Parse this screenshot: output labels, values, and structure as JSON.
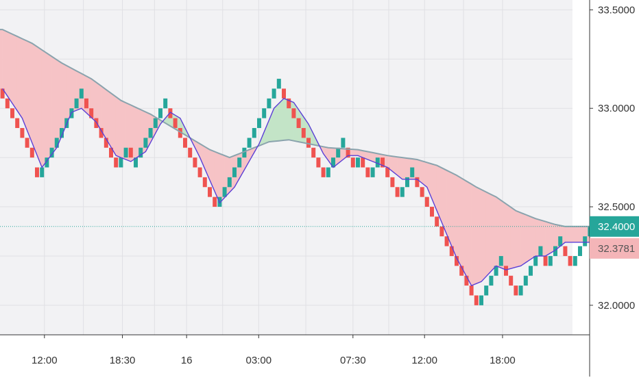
{
  "chart_data": {
    "type": "renko",
    "instrument_hint": "",
    "y_axis": {
      "ticks": [
        "33.5000",
        "33.0000",
        "32.5000",
        "32.0000"
      ],
      "tick_values": [
        33.5,
        33.0,
        32.5,
        32.0
      ],
      "ylim": [
        31.85,
        33.55
      ],
      "position": "right"
    },
    "x_axis": {
      "ticks": [
        "12:00",
        "18:30",
        "16",
        "03:00",
        "07:30",
        "12:00",
        "18:00"
      ],
      "tick_brick_index": [
        8.5,
        24.3,
        37.3,
        51.9,
        71.0,
        85.5,
        101.3
      ]
    },
    "box_size": 0.05,
    "bricks": [
      {
        "dir": "down",
        "close": 33.05
      },
      {
        "dir": "down",
        "close": 33.0
      },
      {
        "dir": "down",
        "close": 32.95
      },
      {
        "dir": "down",
        "close": 32.9
      },
      {
        "dir": "down",
        "close": 32.85
      },
      {
        "dir": "down",
        "close": 32.8
      },
      {
        "dir": "down",
        "close": 32.75
      },
      {
        "dir": "down",
        "close": 32.65
      },
      {
        "dir": "up",
        "close": 32.7
      },
      {
        "dir": "up",
        "close": 32.75
      },
      {
        "dir": "up",
        "close": 32.8
      },
      {
        "dir": "up",
        "close": 32.85
      },
      {
        "dir": "up",
        "close": 32.9
      },
      {
        "dir": "up",
        "close": 32.95
      },
      {
        "dir": "up",
        "close": 33.0
      },
      {
        "dir": "up",
        "close": 33.05
      },
      {
        "dir": "up",
        "close": 33.1
      },
      {
        "dir": "down",
        "close": 33.0
      },
      {
        "dir": "down",
        "close": 32.95
      },
      {
        "dir": "down",
        "close": 32.9
      },
      {
        "dir": "down",
        "close": 32.85
      },
      {
        "dir": "down",
        "close": 32.8
      },
      {
        "dir": "down",
        "close": 32.75
      },
      {
        "dir": "down",
        "close": 32.7
      },
      {
        "dir": "up",
        "close": 32.75
      },
      {
        "dir": "up",
        "close": 32.8
      },
      {
        "dir": "down",
        "close": 32.75
      },
      {
        "dir": "up",
        "close": 32.75
      },
      {
        "dir": "up",
        "close": 32.8
      },
      {
        "dir": "up",
        "close": 32.85
      },
      {
        "dir": "up",
        "close": 32.9
      },
      {
        "dir": "up",
        "close": 32.95
      },
      {
        "dir": "up",
        "close": 33.0
      },
      {
        "dir": "up",
        "close": 33.05
      },
      {
        "dir": "down",
        "close": 32.95
      },
      {
        "dir": "down",
        "close": 32.9
      },
      {
        "dir": "down",
        "close": 32.85
      },
      {
        "dir": "down",
        "close": 32.8
      },
      {
        "dir": "down",
        "close": 32.75
      },
      {
        "dir": "down",
        "close": 32.7
      },
      {
        "dir": "down",
        "close": 32.65
      },
      {
        "dir": "down",
        "close": 32.6
      },
      {
        "dir": "down",
        "close": 32.55
      },
      {
        "dir": "down",
        "close": 32.5
      },
      {
        "dir": "up",
        "close": 32.55
      },
      {
        "dir": "up",
        "close": 32.6
      },
      {
        "dir": "up",
        "close": 32.65
      },
      {
        "dir": "up",
        "close": 32.7
      },
      {
        "dir": "up",
        "close": 32.75
      },
      {
        "dir": "up",
        "close": 32.8
      },
      {
        "dir": "up",
        "close": 32.85
      },
      {
        "dir": "up",
        "close": 32.9
      },
      {
        "dir": "up",
        "close": 32.95
      },
      {
        "dir": "up",
        "close": 33.0
      },
      {
        "dir": "up",
        "close": 33.05
      },
      {
        "dir": "up",
        "close": 33.1
      },
      {
        "dir": "up",
        "close": 33.15
      },
      {
        "dir": "down",
        "close": 33.05
      },
      {
        "dir": "down",
        "close": 33.0
      },
      {
        "dir": "down",
        "close": 32.95
      },
      {
        "dir": "down",
        "close": 32.9
      },
      {
        "dir": "down",
        "close": 32.85
      },
      {
        "dir": "down",
        "close": 32.8
      },
      {
        "dir": "down",
        "close": 32.75
      },
      {
        "dir": "down",
        "close": 32.7
      },
      {
        "dir": "down",
        "close": 32.65
      },
      {
        "dir": "up",
        "close": 32.7
      },
      {
        "dir": "up",
        "close": 32.75
      },
      {
        "dir": "up",
        "close": 32.8
      },
      {
        "dir": "up",
        "close": 32.85
      },
      {
        "dir": "down",
        "close": 32.75
      },
      {
        "dir": "down",
        "close": 32.7
      },
      {
        "dir": "up",
        "close": 32.75
      },
      {
        "dir": "down",
        "close": 32.7
      },
      {
        "dir": "down",
        "close": 32.65
      },
      {
        "dir": "up",
        "close": 32.7
      },
      {
        "dir": "up",
        "close": 32.75
      },
      {
        "dir": "down",
        "close": 32.7
      },
      {
        "dir": "down",
        "close": 32.65
      },
      {
        "dir": "down",
        "close": 32.6
      },
      {
        "dir": "down",
        "close": 32.55
      },
      {
        "dir": "up",
        "close": 32.6
      },
      {
        "dir": "up",
        "close": 32.65
      },
      {
        "dir": "up",
        "close": 32.7
      },
      {
        "dir": "down",
        "close": 32.6
      },
      {
        "dir": "down",
        "close": 32.55
      },
      {
        "dir": "down",
        "close": 32.5
      },
      {
        "dir": "down",
        "close": 32.45
      },
      {
        "dir": "down",
        "close": 32.4
      },
      {
        "dir": "down",
        "close": 32.35
      },
      {
        "dir": "down",
        "close": 32.3
      },
      {
        "dir": "down",
        "close": 32.25
      },
      {
        "dir": "down",
        "close": 32.2
      },
      {
        "dir": "down",
        "close": 32.15
      },
      {
        "dir": "down",
        "close": 32.1
      },
      {
        "dir": "down",
        "close": 32.05
      },
      {
        "dir": "down",
        "close": 32.0
      },
      {
        "dir": "up",
        "close": 32.05
      },
      {
        "dir": "up",
        "close": 32.1
      },
      {
        "dir": "up",
        "close": 32.15
      },
      {
        "dir": "up",
        "close": 32.2
      },
      {
        "dir": "up",
        "close": 32.25
      },
      {
        "dir": "down",
        "close": 32.15
      },
      {
        "dir": "down",
        "close": 32.1
      },
      {
        "dir": "down",
        "close": 32.05
      },
      {
        "dir": "up",
        "close": 32.1
      },
      {
        "dir": "up",
        "close": 32.15
      },
      {
        "dir": "up",
        "close": 32.2
      },
      {
        "dir": "up",
        "close": 32.25
      },
      {
        "dir": "up",
        "close": 32.3
      },
      {
        "dir": "down",
        "close": 32.2
      },
      {
        "dir": "up",
        "close": 32.25
      },
      {
        "dir": "up",
        "close": 32.3
      },
      {
        "dir": "up",
        "close": 32.35
      },
      {
        "dir": "down",
        "close": 32.25
      },
      {
        "dir": "down",
        "close": 32.2
      },
      {
        "dir": "up",
        "close": 32.25
      },
      {
        "dir": "up",
        "close": 32.3
      },
      {
        "dir": "up",
        "close": 32.35
      },
      {
        "dir": "up",
        "close": 32.4
      }
    ],
    "fast_ma": {
      "color": "#5b3fd6",
      "points": [
        [
          0,
          33.1
        ],
        [
          4,
          32.95
        ],
        [
          8,
          32.7
        ],
        [
          11,
          32.8
        ],
        [
          14,
          32.98
        ],
        [
          16,
          33.0
        ],
        [
          19,
          32.93
        ],
        [
          23,
          32.76
        ],
        [
          26,
          32.73
        ],
        [
          29,
          32.78
        ],
        [
          32,
          32.92
        ],
        [
          34,
          32.98
        ],
        [
          36,
          32.95
        ],
        [
          40,
          32.75
        ],
        [
          44,
          32.52
        ],
        [
          47,
          32.6
        ],
        [
          52,
          32.82
        ],
        [
          55,
          33.0
        ],
        [
          57,
          33.05
        ],
        [
          59,
          33.03
        ],
        [
          62,
          32.92
        ],
        [
          65,
          32.77
        ],
        [
          67,
          32.7
        ],
        [
          70,
          32.76
        ],
        [
          72,
          32.76
        ],
        [
          75,
          32.73
        ],
        [
          78,
          32.7
        ],
        [
          81,
          32.64
        ],
        [
          84,
          32.64
        ],
        [
          86,
          32.6
        ],
        [
          89,
          32.42
        ],
        [
          92,
          32.24
        ],
        [
          95,
          32.1
        ],
        [
          97,
          32.12
        ],
        [
          100,
          32.2
        ],
        [
          102,
          32.18
        ],
        [
          105,
          32.2
        ],
        [
          108,
          32.25
        ],
        [
          110,
          32.25
        ],
        [
          112,
          32.28
        ],
        [
          114,
          32.32
        ]
      ]
    },
    "slow_ma": {
      "color": "#8aa3ad",
      "points": [
        [
          0,
          33.4
        ],
        [
          6,
          33.33
        ],
        [
          12,
          33.23
        ],
        [
          18,
          33.15
        ],
        [
          24,
          33.04
        ],
        [
          30,
          32.97
        ],
        [
          36,
          32.88
        ],
        [
          42,
          32.79
        ],
        [
          46,
          32.75
        ],
        [
          50,
          32.79
        ],
        [
          54,
          32.83
        ],
        [
          58,
          32.84
        ],
        [
          62,
          32.82
        ],
        [
          66,
          32.8
        ],
        [
          72,
          32.79
        ],
        [
          78,
          32.76
        ],
        [
          84,
          32.74
        ],
        [
          88,
          32.71
        ],
        [
          92,
          32.66
        ],
        [
          96,
          32.6
        ],
        [
          100,
          32.55
        ],
        [
          104,
          32.48
        ],
        [
          108,
          32.44
        ],
        [
          112,
          32.41
        ],
        [
          114,
          32.4
        ]
      ]
    },
    "cloud": {
      "bull_color": "#c3e4c7",
      "bear_color": "#f6c3c6"
    },
    "colors": {
      "up": "#26a69a",
      "down": "#ef5350",
      "background": "#f2f2f4",
      "grid": "#e0e0e4"
    },
    "price_labels": [
      {
        "text": "32.4000",
        "value": 32.4,
        "color": "#26a69a"
      },
      {
        "text": "32.3781",
        "value": 32.3781,
        "color": "#f4b5b8",
        "text_color": "#555555"
      }
    ],
    "last_price_line": {
      "value": 32.4,
      "color": "#26a69a",
      "style": "dotted"
    },
    "grid": true,
    "legend": "none"
  }
}
